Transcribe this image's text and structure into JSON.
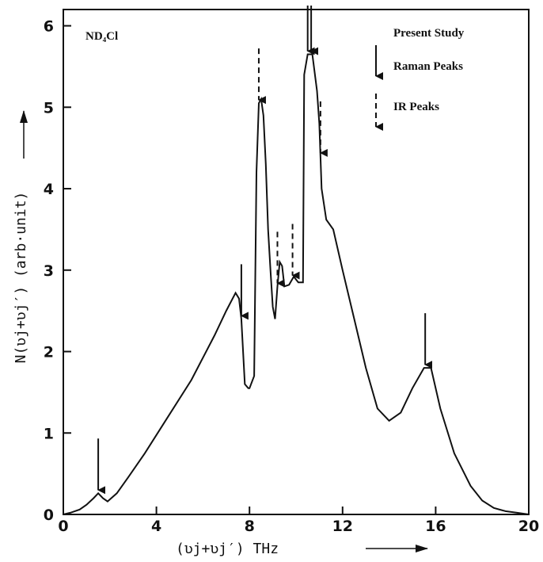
{
  "chart_data": {
    "type": "line",
    "compound_label": "ND₄Cl",
    "xlabel": "(ʋj+ʋj′) THz",
    "ylabel": "N(ʋj+ʋj′) (arb·unit)",
    "xlim": [
      0,
      20
    ],
    "ylim": [
      0,
      6.2
    ],
    "x_ticks": [
      0,
      4,
      8,
      12,
      16,
      20
    ],
    "y_ticks": [
      0,
      1,
      2,
      3,
      4,
      5,
      6
    ],
    "grid": false,
    "legend": {
      "position": "top-right",
      "title": "Present Study",
      "entries": [
        {
          "label": "Raman Peaks",
          "style": "solid"
        },
        {
          "label": "IR Peaks",
          "style": "dashed"
        }
      ]
    },
    "series": [
      {
        "x": [
          0,
          0.3,
          0.7,
          1.0,
          1.3,
          1.5,
          1.7,
          1.9,
          2.3,
          2.8,
          3.5,
          4.5,
          5.5,
          6.5,
          7.0,
          7.4,
          7.55,
          7.65,
          7.8,
          7.95,
          8.0,
          8.2,
          8.3,
          8.4,
          8.5,
          8.6,
          8.7,
          8.8,
          8.9,
          9.0,
          9.1,
          9.2,
          9.3,
          9.4,
          9.5,
          9.7,
          9.9,
          10.1,
          10.3,
          10.35,
          10.5,
          10.7,
          10.9,
          11.0,
          11.1,
          11.3,
          11.6,
          12.0,
          12.5,
          13.0,
          13.5,
          14.0,
          14.5,
          15.0,
          15.5,
          15.8,
          16.2,
          16.8,
          17.5,
          18.0,
          18.5,
          19.0,
          19.5,
          20.0
        ],
        "y": [
          0,
          0.02,
          0.06,
          0.12,
          0.2,
          0.26,
          0.2,
          0.16,
          0.26,
          0.46,
          0.75,
          1.2,
          1.65,
          2.2,
          2.5,
          2.72,
          2.65,
          2.4,
          1.6,
          1.55,
          1.55,
          1.7,
          4.2,
          5.05,
          5.1,
          4.9,
          4.3,
          3.5,
          3.0,
          2.55,
          2.4,
          2.8,
          3.1,
          3.05,
          2.8,
          2.82,
          2.92,
          2.85,
          2.85,
          5.4,
          5.65,
          5.65,
          5.2,
          4.8,
          4.0,
          3.62,
          3.5,
          3.0,
          2.4,
          1.8,
          1.3,
          1.15,
          1.25,
          1.55,
          1.8,
          1.8,
          1.3,
          0.75,
          0.35,
          0.17,
          0.08,
          0.04,
          0.02,
          0.0
        ]
      }
    ],
    "peaks": [
      {
        "x": 1.5,
        "kind": "raman"
      },
      {
        "x": 7.65,
        "kind": "raman"
      },
      {
        "x": 8.4,
        "kind": "ir"
      },
      {
        "x": 9.2,
        "kind": "ir"
      },
      {
        "x": 9.85,
        "kind": "ir"
      },
      {
        "x": 10.5,
        "kind": "raman"
      },
      {
        "x": 10.65,
        "kind": "raman"
      },
      {
        "x": 11.05,
        "kind": "ir"
      },
      {
        "x": 15.55,
        "kind": "raman"
      }
    ]
  }
}
